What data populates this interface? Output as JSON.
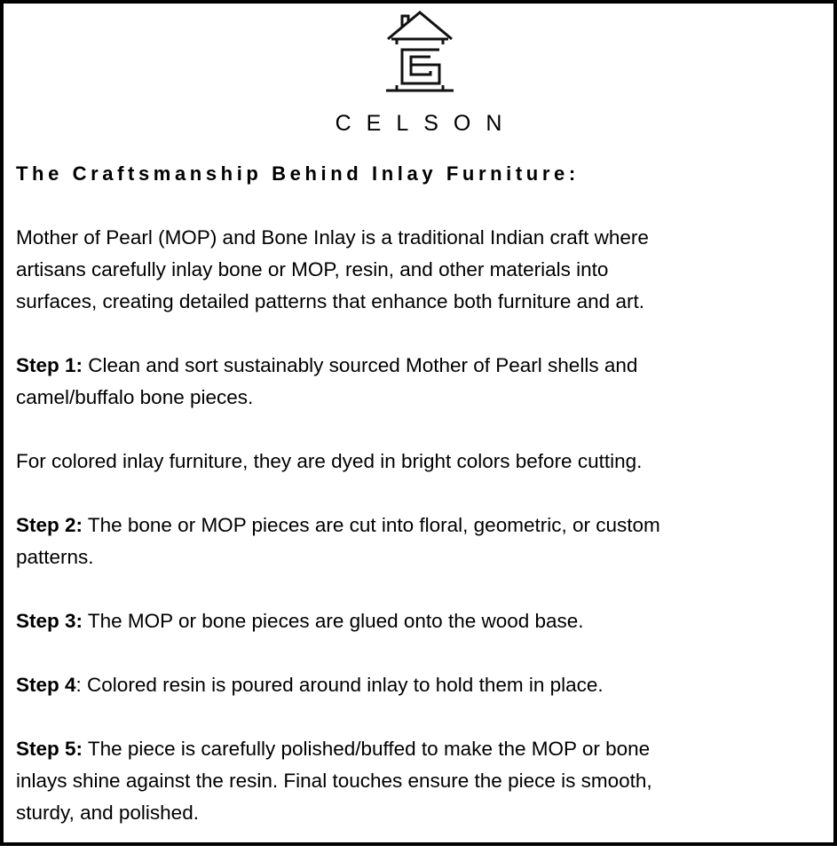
{
  "brand": {
    "name": "CELSON",
    "logo": "house-icon-with-letter-c"
  },
  "heading": "The Craftsmanship Behind Inlay Furniture:",
  "intro": {
    "lines": [
      "Mother of Pearl (MOP) and Bone Inlay is a traditional Indian craft where",
      "artisans carefully inlay bone or MOP, resin, and other materials into",
      "surfaces, creating detailed patterns that enhance both furniture and art."
    ]
  },
  "step1": {
    "label": "Step 1:",
    "after": "",
    "lines": [
      " Clean and sort sustainably sourced Mother of Pearl shells and",
      "camel/buffalo bone pieces."
    ]
  },
  "note": {
    "lines": [
      "For colored inlay furniture, they are dyed in bright colors before cutting."
    ]
  },
  "step2": {
    "label": "Step 2:",
    "after": "",
    "lines": [
      " The bone or MOP pieces are cut into floral, geometric, or custom",
      "patterns."
    ]
  },
  "step3": {
    "label": "Step 3:",
    "after": "",
    "lines": [
      " The MOP or bone pieces are glued onto the wood base."
    ]
  },
  "step4": {
    "label": "Step 4",
    "after": ":",
    "lines": [
      " Colored resin is poured around inlay to hold them in place."
    ]
  },
  "step5": {
    "label": "Step 5:",
    "after": "",
    "lines": [
      " The piece is carefully polished/buffed to make the MOP or bone",
      "inlays shine against the resin. Final touches ensure the piece is smooth,",
      "sturdy, and polished."
    ]
  }
}
